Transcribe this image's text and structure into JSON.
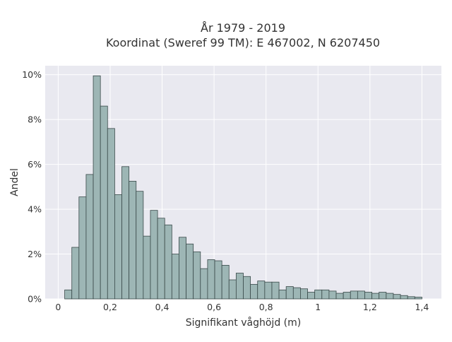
{
  "chart_data": {
    "type": "bar",
    "title": "År 1979 - 2019",
    "subtitle": "Koordinat (Sweref 99 TM): E 467002, N 6207450",
    "xlabel": "Signifikant våghöjd (m)",
    "ylabel": "Andel",
    "xlim": [
      -0.05,
      1.475
    ],
    "ylim": [
      0,
      10.4
    ],
    "x_ticks": [
      0,
      0.2,
      0.4,
      0.6,
      0.8,
      1,
      1.2,
      1.4
    ],
    "x_tick_labels": [
      "0",
      "0,2",
      "0,4",
      "0,6",
      "0,8",
      "1",
      "1,2",
      "1,4"
    ],
    "y_ticks": [
      0,
      2,
      4,
      6,
      8,
      10
    ],
    "y_tick_labels": [
      "0%",
      "2%",
      "4%",
      "6%",
      "8%",
      "10%"
    ],
    "grid": true,
    "legend": "none",
    "bin_width": 0.0275,
    "bins_start": [
      0.025,
      0.0525,
      0.08,
      0.1075,
      0.135,
      0.1625,
      0.19,
      0.2175,
      0.245,
      0.2725,
      0.3,
      0.3275,
      0.355,
      0.3825,
      0.41,
      0.4375,
      0.465,
      0.4925,
      0.52,
      0.5475,
      0.575,
      0.6025,
      0.63,
      0.6575,
      0.685,
      0.7125,
      0.74,
      0.7675,
      0.795,
      0.8225,
      0.85,
      0.8775,
      0.905,
      0.9325,
      0.96,
      0.9875,
      1.015,
      1.0425,
      1.07,
      1.0975,
      1.125,
      1.1525,
      1.18,
      1.2075,
      1.235,
      1.2625,
      1.29,
      1.3175,
      1.345,
      1.3725
    ],
    "values": [
      0.4,
      2.3,
      4.55,
      5.55,
      9.95,
      8.6,
      7.6,
      4.65,
      5.9,
      5.25,
      4.8,
      2.8,
      3.95,
      3.6,
      3.3,
      2.0,
      2.75,
      2.45,
      2.1,
      1.35,
      1.75,
      1.7,
      1.5,
      0.85,
      1.15,
      1.0,
      0.65,
      0.8,
      0.75,
      0.75,
      0.4,
      0.55,
      0.5,
      0.45,
      0.3,
      0.4,
      0.4,
      0.35,
      0.25,
      0.3,
      0.35,
      0.35,
      0.3,
      0.25,
      0.3,
      0.25,
      0.2,
      0.15,
      0.1,
      0.08
    ],
    "colors": {
      "bar_fill": "#9db6b5",
      "bar_edge": "#3a4a4a",
      "plot_background": "#e9e9f0",
      "grid": "#ffffff"
    }
  }
}
